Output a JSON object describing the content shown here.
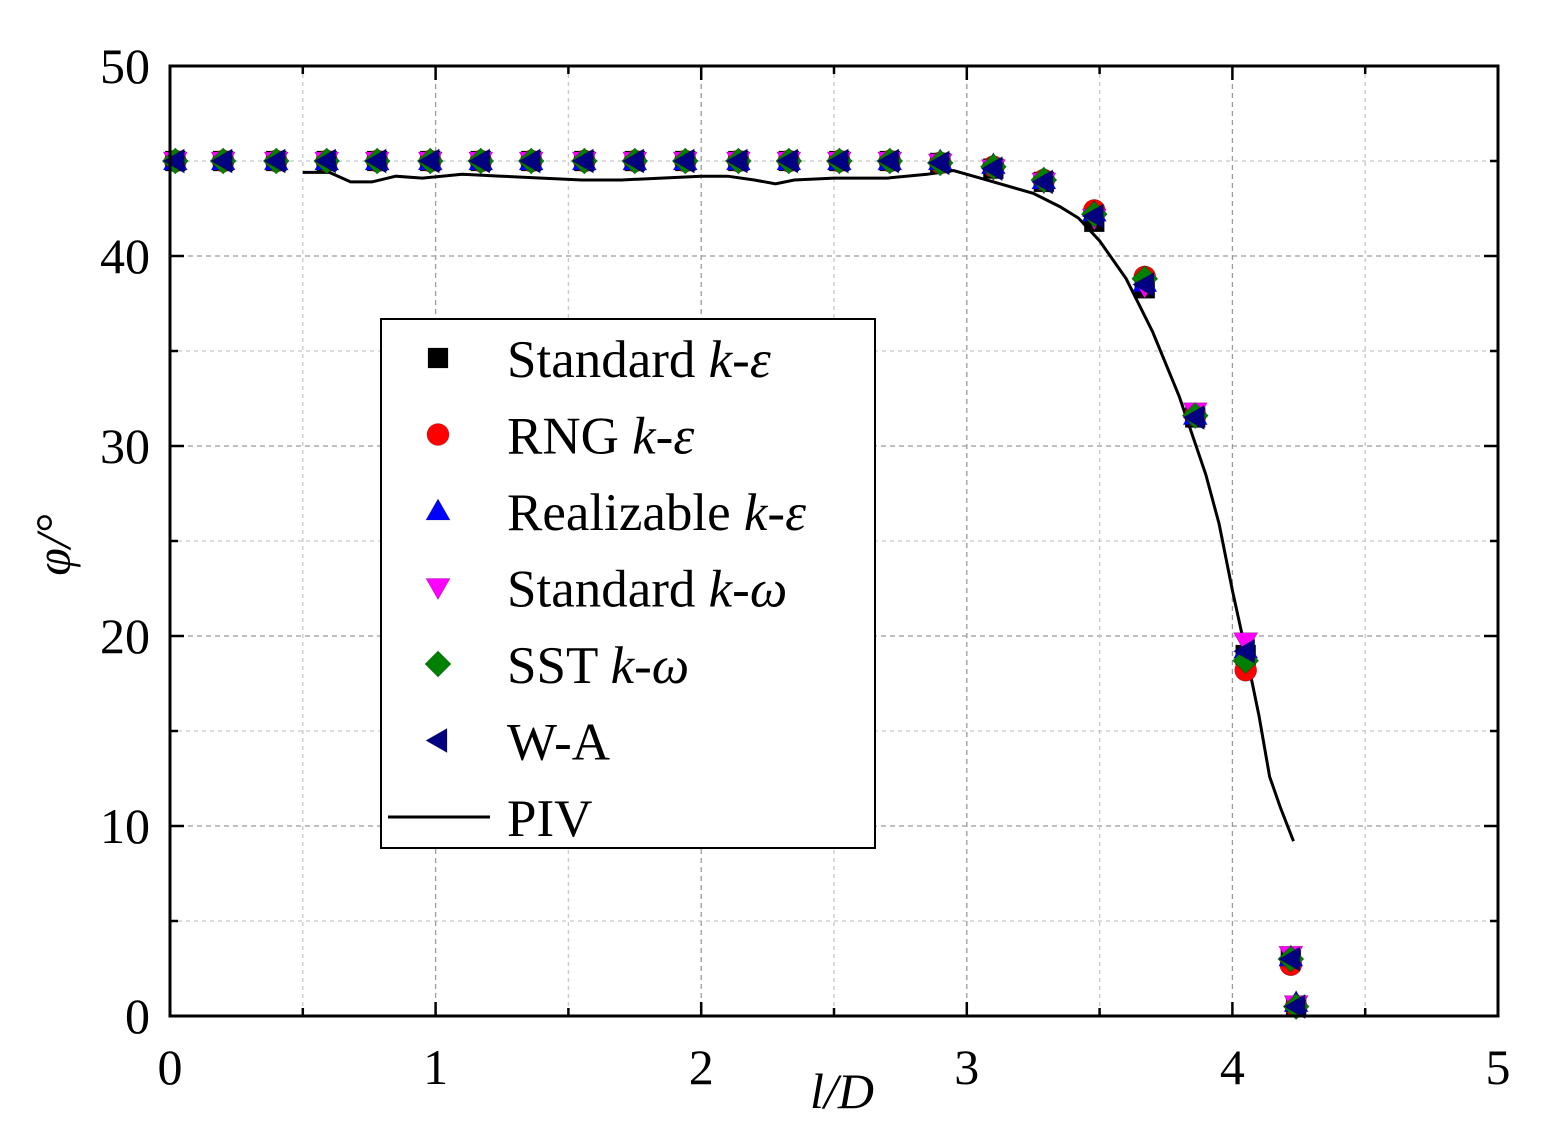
{
  "chart_data": {
    "type": "scatter",
    "xlabel": "l/D",
    "ylabel": "φ/°",
    "xlim": [
      0,
      5
    ],
    "ylim": [
      0,
      50
    ],
    "xticks": [
      "0",
      "1",
      "2",
      "3",
      "4",
      "5"
    ],
    "yticks": [
      "0",
      "10",
      "20",
      "30",
      "40",
      "50"
    ],
    "grid": true,
    "legend_position": "center-left",
    "x": [
      0.02,
      0.2,
      0.4,
      0.59,
      0.78,
      0.98,
      1.17,
      1.36,
      1.56,
      1.75,
      1.94,
      2.14,
      2.33,
      2.52,
      2.71,
      2.9,
      3.1,
      3.29,
      3.48,
      3.67,
      3.86,
      4.05,
      4.22,
      4.24
    ],
    "series": [
      {
        "name": "Standard k-ε",
        "prefix": "Standard ",
        "suffix": "k-ε",
        "marker": "square",
        "color": "#000000",
        "values": [
          45,
          45,
          45,
          45,
          45,
          45,
          45,
          45,
          45,
          45,
          45,
          45,
          45,
          45,
          45,
          44.9,
          44.6,
          43.9,
          41.8,
          38.3,
          31.5,
          19.0,
          3.0,
          0.5
        ]
      },
      {
        "name": "RNG k-ε",
        "prefix": "RNG ",
        "suffix": "k-ε",
        "marker": "circle",
        "color": "#ff0000",
        "values": [
          45,
          45,
          45,
          45,
          45,
          45,
          45,
          45,
          45,
          45,
          45,
          45,
          45,
          45,
          45,
          44.9,
          44.7,
          44.0,
          42.4,
          38.9,
          31.6,
          18.2,
          2.7,
          0.5
        ]
      },
      {
        "name": "Realizable k-ε",
        "prefix": "Realizable ",
        "suffix": "k-ε",
        "marker": "triangle-up",
        "color": "#0000ff",
        "values": [
          45,
          45,
          45,
          45,
          45,
          45,
          45,
          45,
          45,
          45,
          45,
          45,
          45,
          45,
          45,
          45.0,
          44.8,
          44.0,
          42.3,
          38.6,
          31.6,
          19.3,
          3.1,
          0.7
        ]
      },
      {
        "name": "Standard k-ω",
        "prefix": "Standard ",
        "suffix": "k-ω",
        "marker": "triangle-down",
        "color": "#ff00ff",
        "values": [
          45,
          45,
          45,
          45,
          45,
          45,
          45,
          45,
          45,
          45,
          45,
          45,
          45,
          45,
          45,
          44.9,
          44.6,
          43.9,
          42.0,
          38.4,
          31.8,
          19.7,
          3.2,
          0.6
        ]
      },
      {
        "name": "SST k-ω",
        "prefix": "SST ",
        "suffix": "k-ω",
        "marker": "diamond",
        "color": "#008000",
        "values": [
          45,
          45,
          45,
          45,
          45,
          45,
          45,
          45,
          45,
          45,
          45,
          45,
          45,
          45,
          45,
          44.9,
          44.7,
          44.0,
          42.2,
          38.8,
          31.6,
          18.7,
          3.0,
          0.5
        ]
      },
      {
        "name": "W-A",
        "prefix": "W-A",
        "suffix": "",
        "marker": "triangle-left",
        "color": "#000080",
        "values": [
          45,
          45,
          45,
          45,
          45,
          45,
          45,
          45,
          45,
          45,
          45,
          45,
          45,
          45,
          45,
          44.9,
          44.6,
          43.9,
          42.1,
          38.5,
          31.5,
          19.2,
          3.0,
          0.5
        ]
      }
    ],
    "line_series": {
      "name": "PIV",
      "color": "#000000",
      "x": [
        0.5,
        0.6,
        0.68,
        0.76,
        0.85,
        0.95,
        1.1,
        1.25,
        1.4,
        1.55,
        1.7,
        1.85,
        2.0,
        2.1,
        2.2,
        2.28,
        2.35,
        2.5,
        2.7,
        2.85,
        2.95,
        3.05,
        3.15,
        3.25,
        3.35,
        3.42,
        3.5,
        3.6,
        3.7,
        3.8,
        3.9,
        3.95,
        4.0,
        4.05,
        4.1,
        4.14,
        4.18,
        4.23
      ],
      "values": [
        44.4,
        44.4,
        43.9,
        43.9,
        44.2,
        44.1,
        44.3,
        44.2,
        44.1,
        44.0,
        44.0,
        44.1,
        44.2,
        44.2,
        44.0,
        43.8,
        44.0,
        44.1,
        44.1,
        44.3,
        44.5,
        44.1,
        43.7,
        43.3,
        42.6,
        42.0,
        40.8,
        38.8,
        36.0,
        32.6,
        28.5,
        25.9,
        22.4,
        19.2,
        15.8,
        12.6,
        11.0,
        9.2
      ]
    }
  }
}
